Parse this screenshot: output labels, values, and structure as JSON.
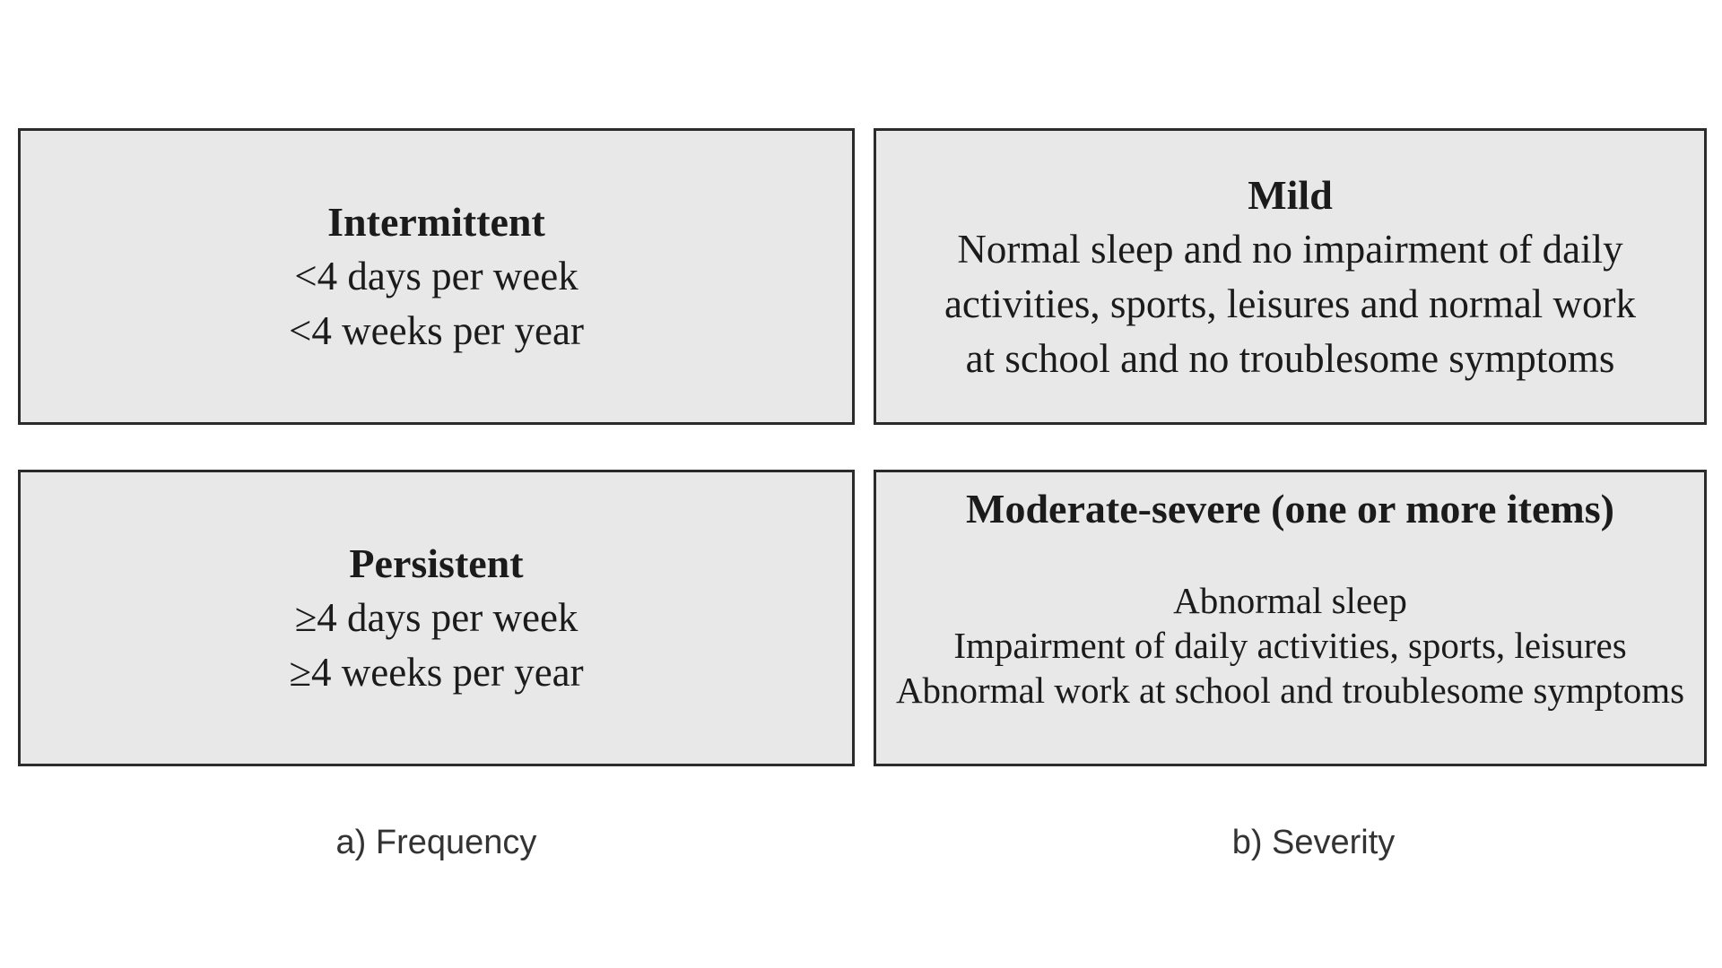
{
  "figure": {
    "boxes": {
      "intermittent": {
        "title": "Intermittent",
        "lines": [
          "<4 days per week",
          "<4 weeks per year"
        ]
      },
      "mild": {
        "title": "Mild",
        "lines": [
          "Normal sleep and no impairment of daily",
          "activities, sports, leisures and normal work",
          "at school and no troublesome symptoms"
        ]
      },
      "persistent": {
        "title": "Persistent",
        "lines": [
          "≥4 days per week",
          "≥4 weeks per year"
        ]
      },
      "moderate_severe": {
        "title": "Moderate-severe (one or more items)",
        "lines": [
          "Abnormal sleep",
          "Impairment of daily activities, sports, leisures",
          "Abnormal work at school and troublesome symptoms"
        ]
      }
    },
    "captions": {
      "frequency": "a) Frequency",
      "severity": "b) Severity"
    },
    "colors": {
      "background": "#ffffff",
      "box_fill": "#e8e8e8",
      "box_border": "#2b2b2b",
      "box_text": "#1b1b1b",
      "caption_text": "#333333"
    }
  }
}
